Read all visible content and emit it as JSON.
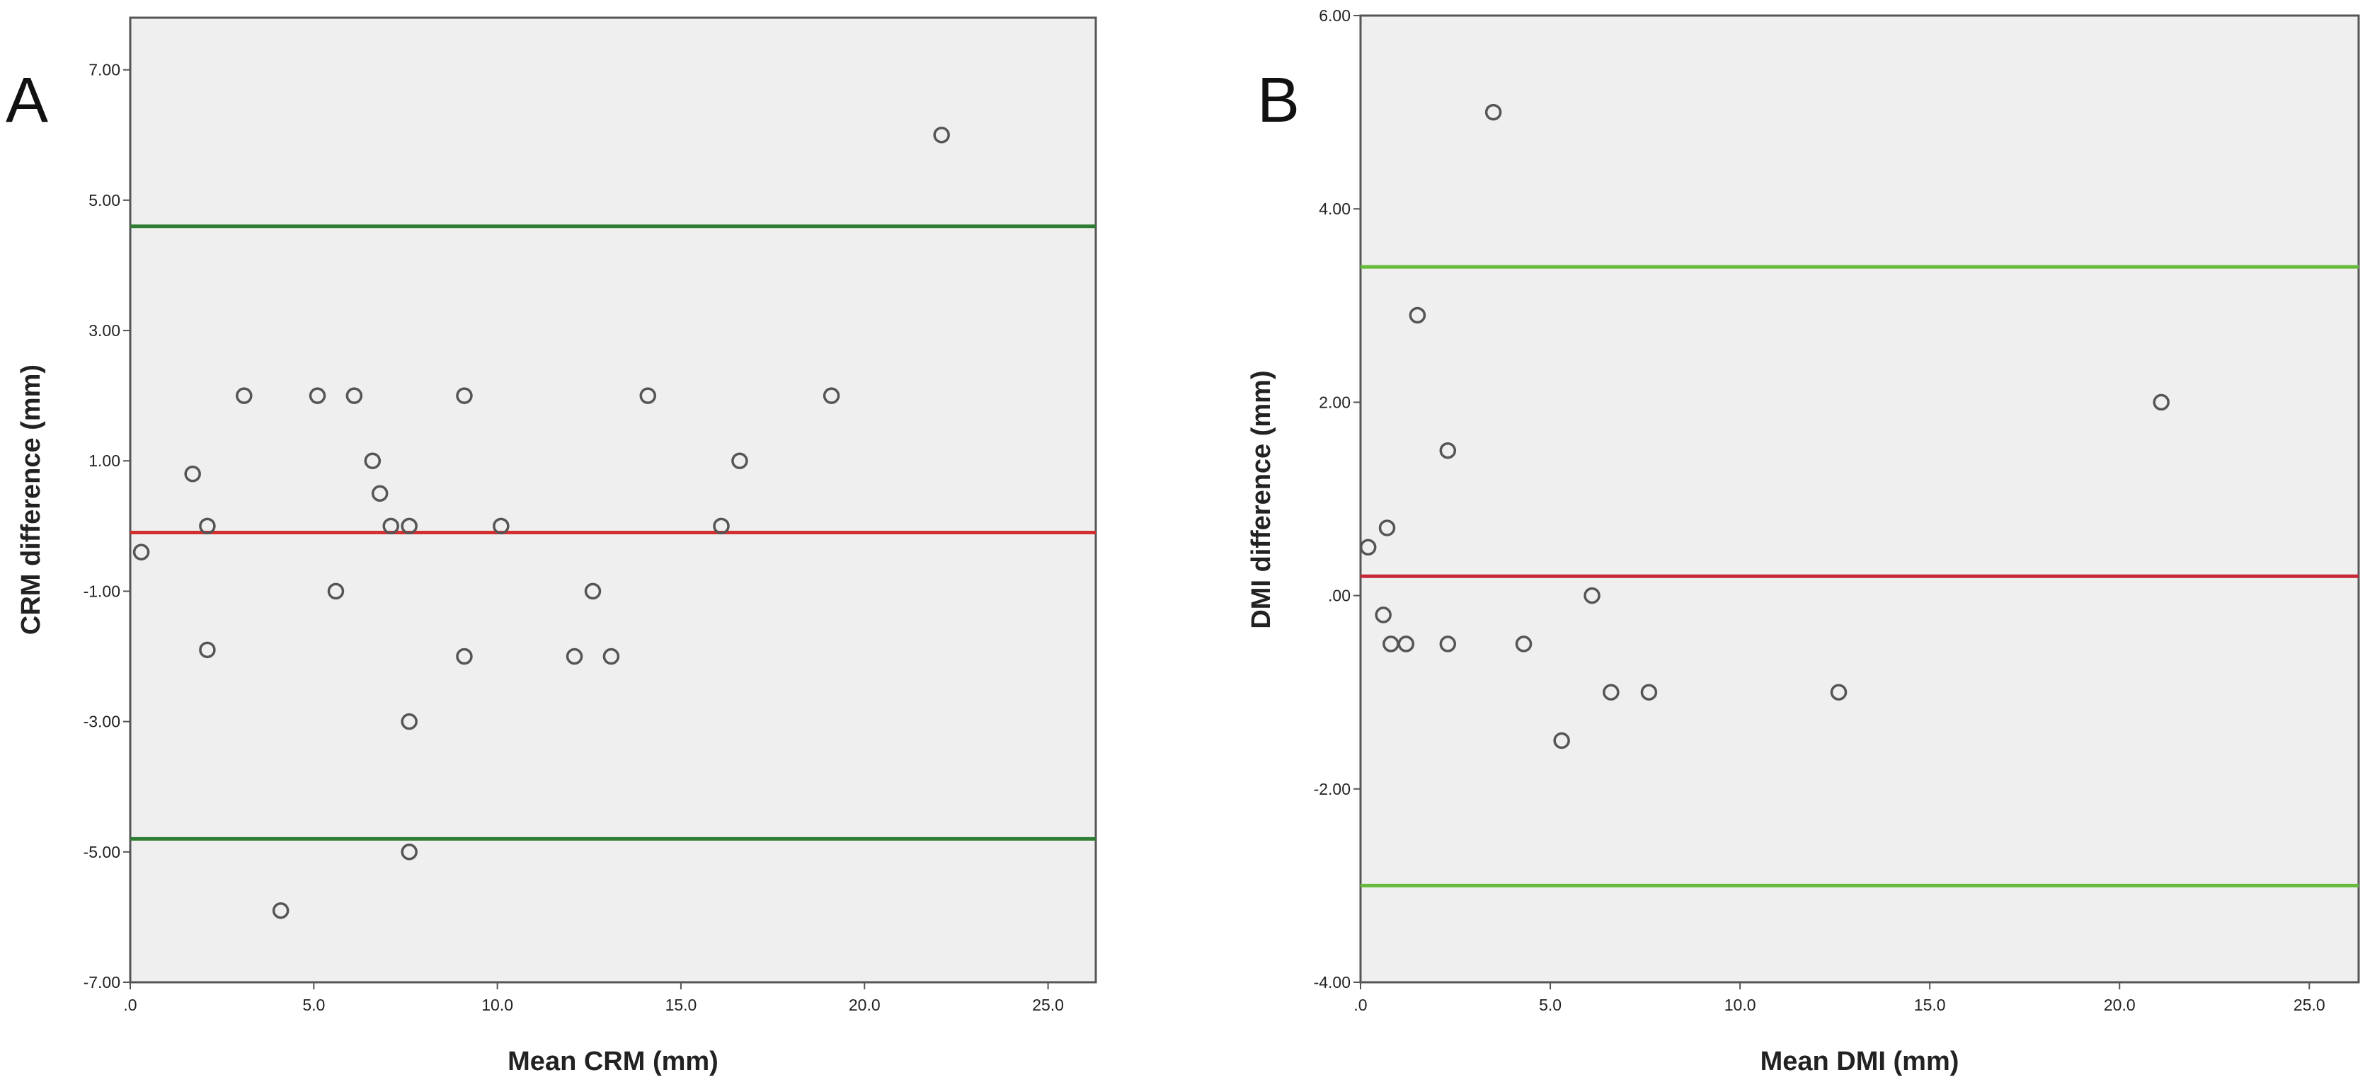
{
  "chart_data": [
    {
      "type": "scatter",
      "panel_label": "A",
      "xlabel": "Mean CRM (mm)",
      "ylabel": "CRM difference (mm)",
      "xlim": [
        0,
        26.3
      ],
      "ylim": [
        -7.0,
        7.8
      ],
      "x_ticks": [
        0,
        5,
        10,
        15,
        20,
        25
      ],
      "x_tick_labels": [
        ".0",
        "5.0",
        "10.0",
        "15.0",
        "20.0",
        "25.0"
      ],
      "y_ticks": [
        7,
        5,
        3,
        1,
        -1,
        -3,
        -5,
        -7
      ],
      "y_tick_labels": [
        "7.00",
        "5.00",
        "3.00",
        "1.00",
        "-1.00",
        "-3.00",
        "-5.00",
        "-7.00"
      ],
      "grid": false,
      "points": [
        {
          "x": 0.3,
          "y": -0.4
        },
        {
          "x": 1.7,
          "y": 0.8
        },
        {
          "x": 2.1,
          "y": 0.0
        },
        {
          "x": 2.1,
          "y": -1.9
        },
        {
          "x": 3.1,
          "y": 2.0
        },
        {
          "x": 4.1,
          "y": -5.9
        },
        {
          "x": 5.1,
          "y": 2.0
        },
        {
          "x": 5.6,
          "y": -1.0
        },
        {
          "x": 6.1,
          "y": 2.0
        },
        {
          "x": 6.6,
          "y": 1.0
        },
        {
          "x": 6.8,
          "y": 0.5
        },
        {
          "x": 7.1,
          "y": 0.0
        },
        {
          "x": 7.6,
          "y": 0.0
        },
        {
          "x": 7.6,
          "y": -3.0
        },
        {
          "x": 7.6,
          "y": -5.0
        },
        {
          "x": 9.1,
          "y": 2.0
        },
        {
          "x": 9.1,
          "y": -2.0
        },
        {
          "x": 10.1,
          "y": 0.0
        },
        {
          "x": 12.1,
          "y": -2.0
        },
        {
          "x": 12.6,
          "y": -1.0
        },
        {
          "x": 13.1,
          "y": -2.0
        },
        {
          "x": 14.1,
          "y": 2.0
        },
        {
          "x": 16.1,
          "y": 0.0
        },
        {
          "x": 16.6,
          "y": 1.0
        },
        {
          "x": 19.1,
          "y": 2.0
        },
        {
          "x": 22.1,
          "y": 6.0
        }
      ],
      "reference_lines": [
        {
          "y": 4.6,
          "color": "#2e7d32"
        },
        {
          "y": -0.1,
          "color": "#d32f2f"
        },
        {
          "y": -4.8,
          "color": "#2e7d32"
        }
      ]
    },
    {
      "type": "scatter",
      "panel_label": "B",
      "xlabel": "Mean DMI (mm)",
      "ylabel": "DMI difference (mm)",
      "xlim": [
        0,
        26.3
      ],
      "ylim": [
        -4.0,
        6.0
      ],
      "x_ticks": [
        0,
        5,
        10,
        15,
        20,
        25
      ],
      "x_tick_labels": [
        ".0",
        "5.0",
        "10.0",
        "15.0",
        "20.0",
        "25.0"
      ],
      "y_ticks": [
        6,
        4,
        2,
        0,
        -2,
        -4
      ],
      "y_tick_labels": [
        "6.00",
        "4.00",
        "2.00",
        ".00",
        "-2.00",
        "-4.00"
      ],
      "grid": false,
      "points": [
        {
          "x": 0.2,
          "y": 0.5
        },
        {
          "x": 0.6,
          "y": -0.2
        },
        {
          "x": 0.7,
          "y": 0.7
        },
        {
          "x": 0.8,
          "y": -0.5
        },
        {
          "x": 1.2,
          "y": -0.5
        },
        {
          "x": 1.5,
          "y": 2.9
        },
        {
          "x": 2.3,
          "y": 1.5
        },
        {
          "x": 2.3,
          "y": -0.5
        },
        {
          "x": 3.5,
          "y": 5.0
        },
        {
          "x": 4.3,
          "y": -0.5
        },
        {
          "x": 5.3,
          "y": -1.5
        },
        {
          "x": 6.1,
          "y": 0.0
        },
        {
          "x": 6.6,
          "y": -1.0
        },
        {
          "x": 7.6,
          "y": -1.0
        },
        {
          "x": 12.6,
          "y": -1.0
        },
        {
          "x": 21.1,
          "y": 2.0
        }
      ],
      "reference_lines": [
        {
          "y": 3.4,
          "color": "#66bb3a"
        },
        {
          "y": 0.2,
          "color": "#c62839"
        },
        {
          "y": -3.0,
          "color": "#66bb3a"
        }
      ]
    }
  ]
}
